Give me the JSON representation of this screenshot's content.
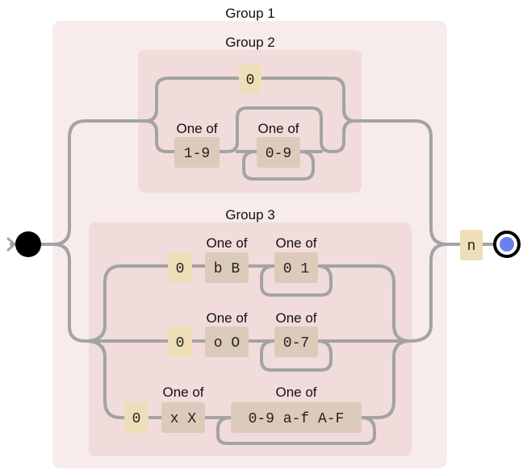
{
  "colors": {
    "group_outer": "#f7ebeb",
    "group_inner": "#f1dbdb",
    "literal_box": "#eedfb8",
    "charset_box": "#dccbbb",
    "wire": "#a3a3a3",
    "end_dot": "#6b7fee"
  },
  "groups": {
    "g1": "Group 1",
    "g2": "Group 2",
    "g3": "Group 3"
  },
  "group2": {
    "zero_literal": "0",
    "first_set_label": "One of",
    "first_set": "1-9",
    "second_set_label": "One of",
    "second_set": "0-9"
  },
  "group3": {
    "bin": {
      "zero": "0",
      "prefix_label": "One of",
      "prefix": "b B",
      "digits_label": "One of",
      "digits": "0 1"
    },
    "oct": {
      "zero": "0",
      "prefix_label": "One of",
      "prefix": "o O",
      "digits_label": "One of",
      "digits": "0-7"
    },
    "hex": {
      "zero": "0",
      "prefix_label": "One of",
      "prefix": "x X",
      "digits_label": "One of",
      "digits": "0-9 a-f A-F"
    }
  },
  "suffix_literal": "n",
  "start_icon": "start-dot-icon",
  "end_icon": "end-target-icon"
}
